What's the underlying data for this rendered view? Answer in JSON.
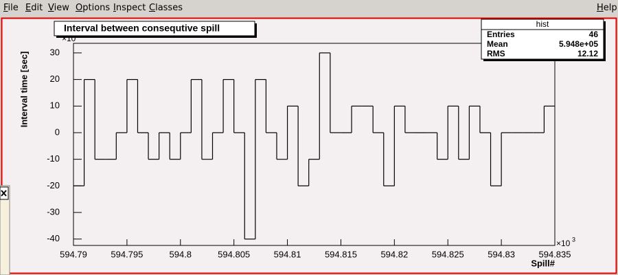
{
  "menu": {
    "left": [
      "File",
      "Edit",
      "View",
      "Options",
      "Inspect",
      "Classes"
    ],
    "right": "Help"
  },
  "chart_data": {
    "type": "histogram",
    "title": "Interval between consequtive spill",
    "x_label": "Spill#",
    "y_label": "Interval time [sec]",
    "x_multiplier": "×10",
    "x_multiplier_exp": "3",
    "y_multiplier": "×10",
    "bins": [
      594.79,
      594.791,
      594.792,
      594.793,
      594.794,
      594.795,
      594.796,
      594.797,
      594.798,
      594.799,
      594.8,
      594.801,
      594.802,
      594.803,
      594.804,
      594.805,
      594.806,
      594.807,
      594.808,
      594.809,
      594.81,
      594.811,
      594.812,
      594.813,
      594.814,
      594.815,
      594.816,
      594.817,
      594.818,
      594.819,
      594.82,
      594.821,
      594.822,
      594.823,
      594.824,
      594.825,
      594.826,
      594.827,
      594.828,
      594.829,
      594.83,
      594.831,
      594.832,
      594.833,
      594.834,
      594.835
    ],
    "values": [
      -20,
      20,
      -10,
      -10,
      0,
      20,
      0,
      -10,
      0,
      -10,
      0,
      20,
      -10,
      0,
      20,
      0,
      -40,
      20,
      0,
      -10,
      10,
      -20,
      -10,
      30,
      0,
      0,
      10,
      10,
      0,
      -20,
      10,
      0,
      0,
      0,
      -10,
      10,
      -10,
      10,
      0,
      -20,
      0,
      0,
      0,
      0,
      10
    ],
    "color": "#000000",
    "xlim": [
      594.79,
      594.835
    ],
    "xticks": [
      594.79,
      594.795,
      594.8,
      594.805,
      594.81,
      594.815,
      594.82,
      594.825,
      594.83,
      594.835
    ],
    "ylim": [
      -42.4,
      33.6
    ],
    "yticks": [
      -40,
      -30,
      -20,
      -10,
      0,
      10,
      20,
      30
    ],
    "stats": {
      "name": "hist",
      "rows": [
        {
          "label": "Entries",
          "value": 46
        },
        {
          "label": "Mean",
          "value": "5.948e+05"
        },
        {
          "label": "RMS",
          "value": 12.12
        }
      ]
    }
  }
}
